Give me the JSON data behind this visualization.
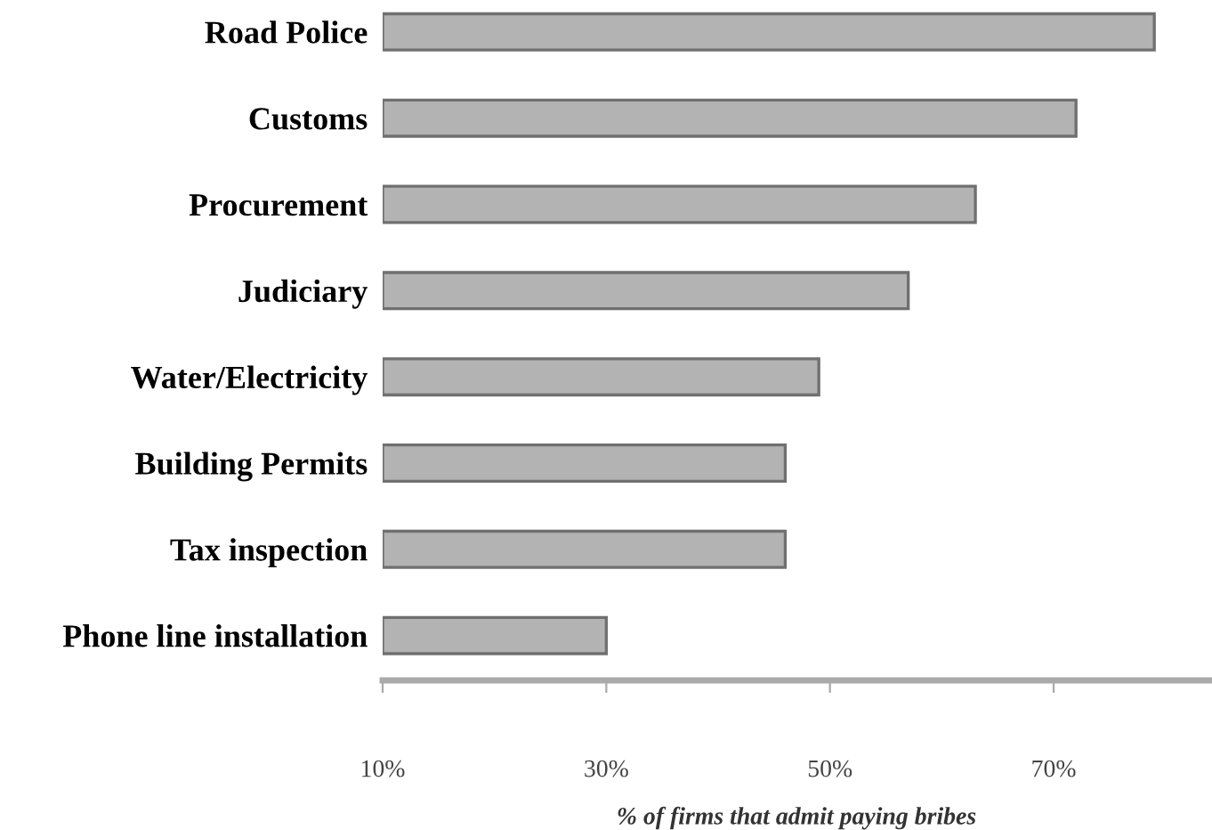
{
  "chart_data": {
    "type": "bar",
    "orientation": "horizontal",
    "xlabel": "% of firms that admit paying bribes",
    "categories": [
      "Road Police",
      "Customs",
      "Procurement",
      "Judiciary",
      "Water/Electricity",
      "Building Permits",
      "Tax inspection",
      "Phone line installation"
    ],
    "values": [
      79,
      72,
      63,
      57,
      49,
      46,
      46,
      30
    ],
    "color": "#b3b3b3",
    "xlim": [
      10,
      84
    ],
    "xticks": [
      {
        "value": 10,
        "label": "10%"
      },
      {
        "value": 30,
        "label": "30%"
      },
      {
        "value": 50,
        "label": "50%"
      },
      {
        "value": 70,
        "label": "70%"
      }
    ],
    "grid": false,
    "legend": false
  }
}
